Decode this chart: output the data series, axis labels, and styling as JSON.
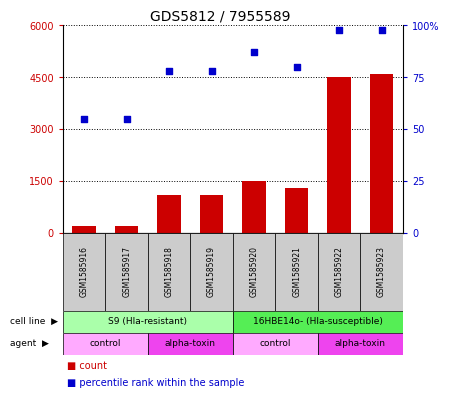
{
  "title": "GDS5812 / 7955589",
  "samples": [
    "GSM1585916",
    "GSM1585917",
    "GSM1585918",
    "GSM1585919",
    "GSM1585920",
    "GSM1585921",
    "GSM1585922",
    "GSM1585923"
  ],
  "counts": [
    200,
    200,
    1100,
    1100,
    1500,
    1300,
    4500,
    4600
  ],
  "percentiles": [
    55,
    55,
    78,
    78,
    87,
    80,
    98,
    98
  ],
  "ylim_left": [
    0,
    6000
  ],
  "ylim_right": [
    0,
    100
  ],
  "yticks_left": [
    0,
    1500,
    3000,
    4500,
    6000
  ],
  "yticks_right": [
    0,
    25,
    50,
    75,
    100
  ],
  "ytick_labels_left": [
    "0",
    "1500",
    "3000",
    "4500",
    "6000"
  ],
  "ytick_labels_right": [
    "0",
    "25",
    "50",
    "75",
    "100%"
  ],
  "bar_color": "#cc0000",
  "dot_color": "#0000cc",
  "cell_line_row": [
    {
      "label": "S9 (Hla-resistant)",
      "start": 0,
      "end": 4,
      "color": "#aaffaa"
    },
    {
      "label": "16HBE14o- (Hla-susceptible)",
      "start": 4,
      "end": 8,
      "color": "#55ee55"
    }
  ],
  "agent_row": [
    {
      "label": "control",
      "start": 0,
      "end": 2,
      "color": "#ffaaff"
    },
    {
      "label": "alpha-toxin",
      "start": 2,
      "end": 4,
      "color": "#ee44ee"
    },
    {
      "label": "control",
      "start": 4,
      "end": 6,
      "color": "#ffaaff"
    },
    {
      "label": "alpha-toxin",
      "start": 6,
      "end": 8,
      "color": "#ee44ee"
    }
  ],
  "sample_box_color": "#cccccc",
  "grid_color": "#000000"
}
